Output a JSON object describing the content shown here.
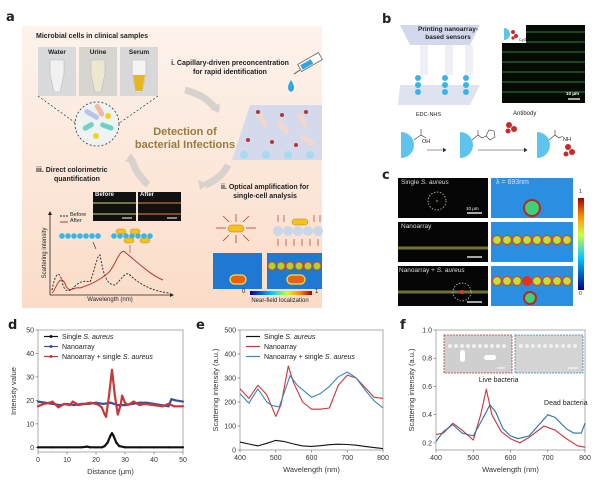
{
  "panel_labels": {
    "a": "a",
    "b": "b",
    "c": "c",
    "d": "d",
    "e": "e",
    "f": "f"
  },
  "panel_a": {
    "samples_title": "Microbial cells in clinical samples",
    "samples": [
      "Water",
      "Urine",
      "Serum"
    ],
    "step1_line1": "i. Capillary-driven preconcentration",
    "step1_line2": "for rapid identification",
    "center_line1": "Detection of",
    "center_line2": "bacterial Infections",
    "center_color": "#9b7a3d",
    "step3_line1": "iii. Direct colorimetric",
    "step3_line2": "quantification",
    "before_label": "Before",
    "after_label": "After",
    "legend_before": "Before",
    "legend_after": "After",
    "ylabel": "Scattering intensity",
    "xlabel": "Wavelength (nm)",
    "step2_line1": "ii. Optical amplification for",
    "step2_line2": "single-cell analysis",
    "colorbar_min": "0",
    "colorbar_max": "1",
    "colorbar_label": "Near-field localization",
    "background_color": "#fbe3d3"
  },
  "panel_b": {
    "title_line1": "Printing nanoarray-",
    "title_line2": "based sensors",
    "dye_label": "Cy3",
    "scale_bar": "10 μm",
    "reagent": "EDC-NHS",
    "antibody_label": "Antibody",
    "oh_label": "OH",
    "nh_label": "NH"
  },
  "panel_c": {
    "rows": [
      {
        "label_prefix": "Single ",
        "label_italic": "S. aureus",
        "scale_bar": "10 μm"
      },
      {
        "label_prefix": "Nanoarray",
        "label_italic": ""
      },
      {
        "label_prefix": "Nanoarray + ",
        "label_italic": "S. aureus"
      }
    ],
    "wavelength_label": "λ = 693nm",
    "colorbar_max": "1",
    "colorbar_min": "0"
  },
  "chart_data": [
    {
      "id": "d",
      "type": "line",
      "xlabel": "Distance (μm)",
      "ylabel": "Intensity value",
      "xlim": [
        0,
        50
      ],
      "ylim": [
        -2,
        50
      ],
      "xticks": [
        0,
        10,
        20,
        30,
        40,
        50
      ],
      "yticks": [
        0,
        10,
        20,
        30,
        40,
        50
      ],
      "legend": "top-left",
      "series": [
        {
          "name_prefix": "Single ",
          "name_italic": "S. aureus",
          "color": "#111111",
          "x": [
            0,
            5,
            10,
            15,
            17,
            18,
            20,
            22,
            23,
            24,
            25,
            25.5,
            26,
            27,
            28,
            30,
            35,
            40,
            45,
            50
          ],
          "y": [
            0,
            0,
            0,
            0,
            0.3,
            0,
            0,
            0,
            0.5,
            2,
            5,
            6,
            5,
            2,
            0.5,
            0,
            0,
            0,
            0,
            0
          ]
        },
        {
          "name_prefix": "Nanoarray",
          "name_italic": "",
          "color": "#3b4f9a",
          "x": [
            0,
            2.5,
            5,
            7.5,
            10,
            12.5,
            15,
            17.5,
            20,
            22.5,
            25,
            27.5,
            30,
            32.5,
            35,
            37.5,
            40,
            42.5,
            45,
            46,
            47.5,
            50
          ],
          "y": [
            19.5,
            19,
            18.5,
            18,
            18.5,
            18,
            18.5,
            18.5,
            19,
            18.5,
            19,
            18,
            18,
            18.5,
            19,
            19,
            18.5,
            18,
            17.5,
            20.5,
            20,
            19.5
          ]
        },
        {
          "name_prefix": "Nanoarray + single ",
          "name_italic": "S. aureus",
          "color": "#c8373a",
          "x": [
            0,
            2,
            4,
            5,
            7,
            9,
            11,
            12,
            14,
            16,
            18,
            20,
            21,
            22,
            23,
            23.5,
            24.5,
            25.5,
            26.5,
            27.5,
            28.5,
            29,
            30,
            31,
            33,
            35,
            37,
            40,
            43,
            45,
            47,
            50
          ],
          "y": [
            17.5,
            18.5,
            19,
            19.5,
            17,
            18.5,
            18,
            19.5,
            18,
            18.5,
            19,
            18.5,
            18,
            17,
            14,
            13,
            22,
            33,
            22,
            14,
            18,
            22,
            19,
            18,
            19.5,
            18,
            18.5,
            18,
            17.5,
            18.5,
            17.5,
            17.5
          ]
        }
      ]
    },
    {
      "id": "e",
      "type": "line",
      "xlabel": "Wavelength (nm)",
      "ylabel": "Scattering intensity (a.u.)",
      "xlim": [
        400,
        800
      ],
      "ylim": [
        0,
        500
      ],
      "xticks": [
        400,
        500,
        600,
        700,
        800
      ],
      "yticks": [
        0,
        100,
        200,
        300,
        400,
        500
      ],
      "legend": "top-left",
      "series": [
        {
          "name_prefix": "Single ",
          "name_italic": "S. aureus",
          "color": "#111111",
          "x": [
            400,
            425,
            450,
            475,
            500,
            525,
            550,
            575,
            600,
            625,
            650,
            675,
            700,
            725,
            750,
            775,
            800
          ],
          "y": [
            33,
            25,
            17,
            28,
            40,
            35,
            25,
            17,
            15,
            18,
            22,
            24,
            23,
            20,
            15,
            10,
            6
          ]
        },
        {
          "name_prefix": "Nanoarray",
          "name_italic": "",
          "color": "#c8373a",
          "x": [
            400,
            425,
            450,
            475,
            500,
            515,
            535,
            550,
            575,
            600,
            625,
            650,
            675,
            700,
            725,
            750,
            775,
            800
          ],
          "y": [
            255,
            215,
            270,
            230,
            140,
            190,
            350,
            280,
            200,
            170,
            170,
            175,
            270,
            312,
            300,
            260,
            220,
            215
          ]
        },
        {
          "name_prefix": "Nanoarray + single ",
          "name_italic": "S. aureus",
          "color": "#3a86b8",
          "x": [
            400,
            425,
            450,
            475,
            490,
            510,
            540,
            560,
            600,
            625,
            650,
            675,
            700,
            725,
            750,
            775,
            800
          ],
          "y": [
            235,
            195,
            255,
            200,
            185,
            180,
            310,
            270,
            220,
            235,
            265,
            305,
            325,
            300,
            250,
            205,
            175
          ]
        }
      ]
    },
    {
      "id": "f",
      "type": "line",
      "xlabel": "Wavelength (nm)",
      "ylabel": "Scattering intensity (a.u.)",
      "xlim": [
        400,
        800
      ],
      "ylim": [
        0.15,
        1.0
      ],
      "xticks": [
        400,
        500,
        600,
        700,
        800
      ],
      "yticks": [
        0.2,
        0.4,
        0.6,
        0.8,
        1.0
      ],
      "annotations": [
        "Live bacteria",
        "Dead bacteria"
      ],
      "inset_scale_bar": "1 μm",
      "series": [
        {
          "color": "#c8373a",
          "x": [
            400,
            420,
            445,
            470,
            500,
            520,
            535,
            550,
            575,
            600,
            625,
            650,
            690,
            720,
            750,
            780,
            800
          ],
          "y": [
            0.26,
            0.27,
            0.34,
            0.29,
            0.22,
            0.4,
            0.58,
            0.4,
            0.28,
            0.23,
            0.2,
            0.24,
            0.32,
            0.29,
            0.23,
            0.18,
            0.17
          ]
        },
        {
          "color": "#2e6fa3",
          "x": [
            400,
            420,
            445,
            470,
            500,
            525,
            545,
            560,
            580,
            600,
            620,
            650,
            680,
            700,
            720,
            750,
            770,
            790,
            800
          ],
          "y": [
            0.21,
            0.28,
            0.33,
            0.27,
            0.25,
            0.37,
            0.47,
            0.42,
            0.3,
            0.25,
            0.23,
            0.25,
            0.34,
            0.4,
            0.38,
            0.3,
            0.27,
            0.27,
            0.34
          ]
        }
      ]
    }
  ]
}
